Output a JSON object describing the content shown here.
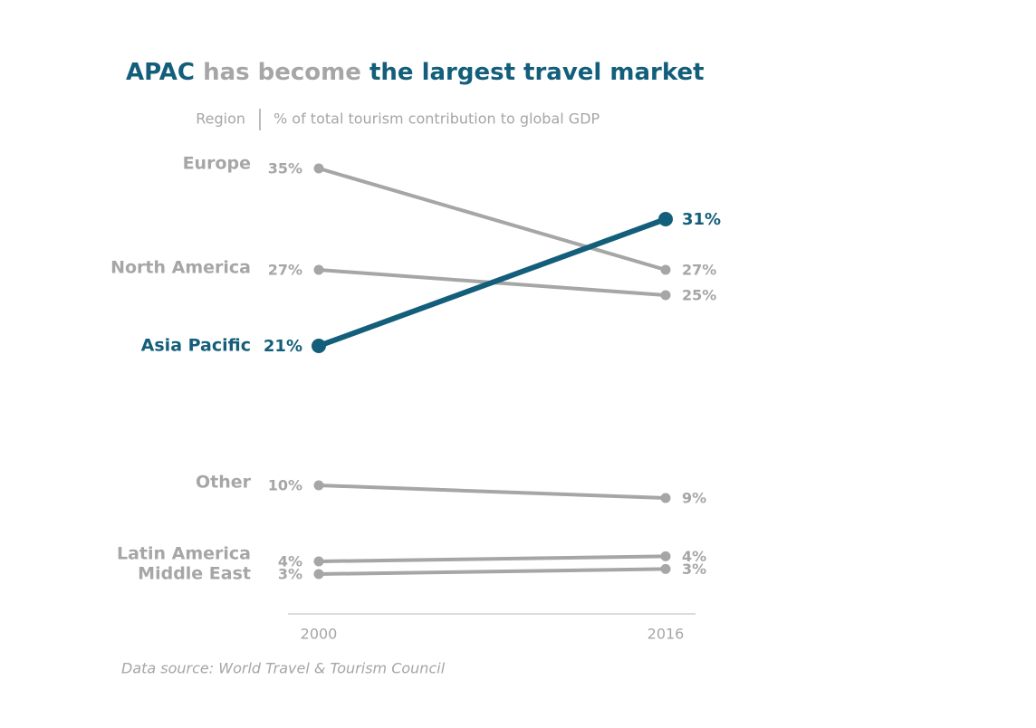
{
  "chart_data": {
    "type": "slope",
    "title": [
      {
        "text": "APAC",
        "color": "#135e7a"
      },
      {
        "text": "has become",
        "color": "#a6a6a6"
      },
      {
        "text": "the largest travel market",
        "color": "#135e7a"
      }
    ],
    "row_header": "Region",
    "value_header": "% of total tourism contribution to global GDP",
    "source": "Data source: World Travel & Tourism Council",
    "categories": [
      "2000",
      "2016"
    ],
    "ylim": [
      0,
      36
    ],
    "series": [
      {
        "name": "Europe",
        "color": "#a6a6a6",
        "values": [
          35,
          27
        ],
        "value_labels": [
          "35%",
          "27%"
        ]
      },
      {
        "name": "North America",
        "color": "#a6a6a6",
        "values": [
          27,
          25
        ],
        "value_labels": [
          "27%",
          "25%"
        ]
      },
      {
        "name": "Asia Pacific",
        "color": "#135e7a",
        "values": [
          21,
          31
        ],
        "value_labels": [
          "21%",
          "31%"
        ]
      },
      {
        "name": "Other",
        "color": "#a6a6a6",
        "values": [
          10,
          9
        ],
        "value_labels": [
          "10%",
          "9%"
        ]
      },
      {
        "name": "Latin America",
        "color": "#a6a6a6",
        "values": [
          4,
          4.4
        ],
        "value_labels": [
          "4%",
          "4%"
        ]
      },
      {
        "name": "Middle East",
        "color": "#a6a6a6",
        "values": [
          3,
          3.4
        ],
        "value_labels": [
          "3%",
          "3%"
        ]
      }
    ]
  }
}
